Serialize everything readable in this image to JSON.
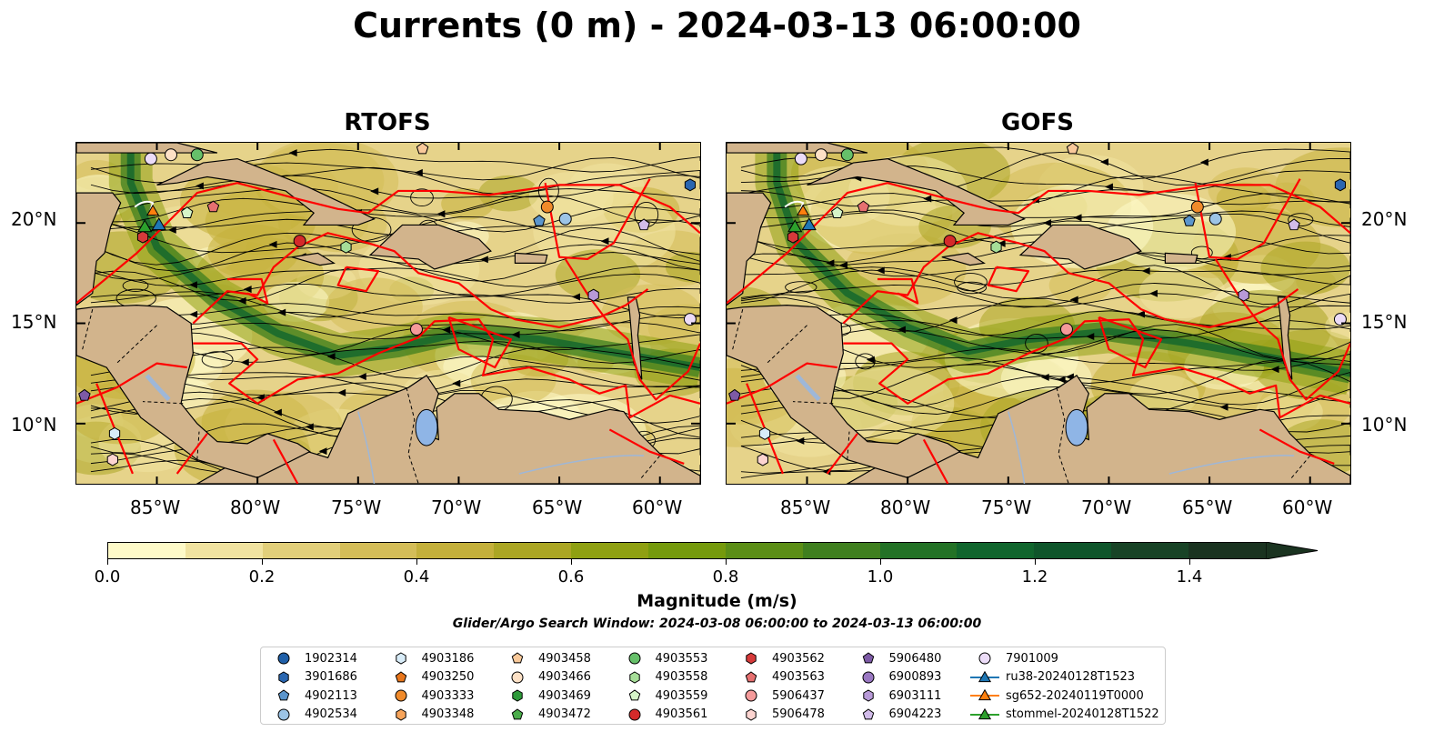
{
  "title": "Currents (0 m) - 2024-03-13 06:00:00",
  "panels": [
    {
      "title": "RTOFS"
    },
    {
      "title": "GOFS"
    }
  ],
  "lon_ticks": [
    "85°W",
    "80°W",
    "75°W",
    "70°W",
    "65°W",
    "60°W"
  ],
  "lat_ticks": [
    "20°N",
    "15°N",
    "10°N"
  ],
  "map_extent": {
    "lon": [
      -89,
      -58
    ],
    "lat": [
      7,
      24
    ]
  },
  "colorbar": {
    "label": "Magnitude (m/s)",
    "ticks": [
      "0.0",
      "0.2",
      "0.4",
      "0.6",
      "0.8",
      "1.0",
      "1.2",
      "1.4"
    ],
    "range": [
      0,
      1.5
    ],
    "colors": [
      "#fefac8",
      "#f1e3a0",
      "#e2cf7a",
      "#d4bd58",
      "#c4b03b",
      "#aba624",
      "#8fa012",
      "#759a0c",
      "#5b8e16",
      "#3f7f1f",
      "#237226",
      "#10652d",
      "#0f552b",
      "#184326",
      "#1a3320"
    ],
    "extend": "max"
  },
  "search_window": "Glider/Argo Search Window: 2024-03-08 06:00:00 to 2024-03-13 06:00:00",
  "legend": [
    {
      "label": "1902314",
      "marker": "circle",
      "color": "#1f5fa8"
    },
    {
      "label": "3901686",
      "marker": "hexagon",
      "color": "#2a66b0"
    },
    {
      "label": "4902113",
      "marker": "pentagon",
      "color": "#5b95cc"
    },
    {
      "label": "4902534",
      "marker": "circle",
      "color": "#9cc4e6"
    },
    {
      "label": "4903186",
      "marker": "hexagon",
      "color": "#d8ecf8"
    },
    {
      "label": "4903250",
      "marker": "pentagon",
      "color": "#e8761c"
    },
    {
      "label": "4903333",
      "marker": "circle",
      "color": "#f08a2a"
    },
    {
      "label": "4903348",
      "marker": "hexagon",
      "color": "#f7a45a"
    },
    {
      "label": "4903458",
      "marker": "pentagon",
      "color": "#f9c99a"
    },
    {
      "label": "4903466",
      "marker": "circle",
      "color": "#fde1c6"
    },
    {
      "label": "4903469",
      "marker": "hexagon",
      "color": "#2e9a3a"
    },
    {
      "label": "4903472",
      "marker": "pentagon",
      "color": "#4aad4a"
    },
    {
      "label": "4903553",
      "marker": "circle",
      "color": "#66c06a"
    },
    {
      "label": "4903558",
      "marker": "hexagon",
      "color": "#a6de98"
    },
    {
      "label": "4903559",
      "marker": "pentagon",
      "color": "#d6f4c8"
    },
    {
      "label": "4903561",
      "marker": "circle",
      "color": "#d42a2a"
    },
    {
      "label": "4903562",
      "marker": "hexagon",
      "color": "#d63a3a"
    },
    {
      "label": "4903563",
      "marker": "pentagon",
      "color": "#e67070"
    },
    {
      "label": "5906437",
      "marker": "circle",
      "color": "#f49a9a"
    },
    {
      "label": "5906478",
      "marker": "hexagon",
      "color": "#fcd4d0"
    },
    {
      "label": "5906480",
      "marker": "pentagon",
      "color": "#7d5aa6"
    },
    {
      "label": "6900893",
      "marker": "circle",
      "color": "#9a78c2"
    },
    {
      "label": "6903111",
      "marker": "hexagon",
      "color": "#b89ad8"
    },
    {
      "label": "6904223",
      "marker": "pentagon",
      "color": "#d2bcea"
    },
    {
      "label": "7901009",
      "marker": "circle",
      "color": "#ecdcf8"
    },
    {
      "label": "ru38-20240128T1523",
      "marker": "triangle-line",
      "color": "#1f77b4"
    },
    {
      "label": "sg652-20240119T0000",
      "marker": "triangle-line",
      "color": "#ff7f0e"
    },
    {
      "label": "stommel-20240128T1522",
      "marker": "triangle-line",
      "color": "#2ca02c"
    }
  ]
}
